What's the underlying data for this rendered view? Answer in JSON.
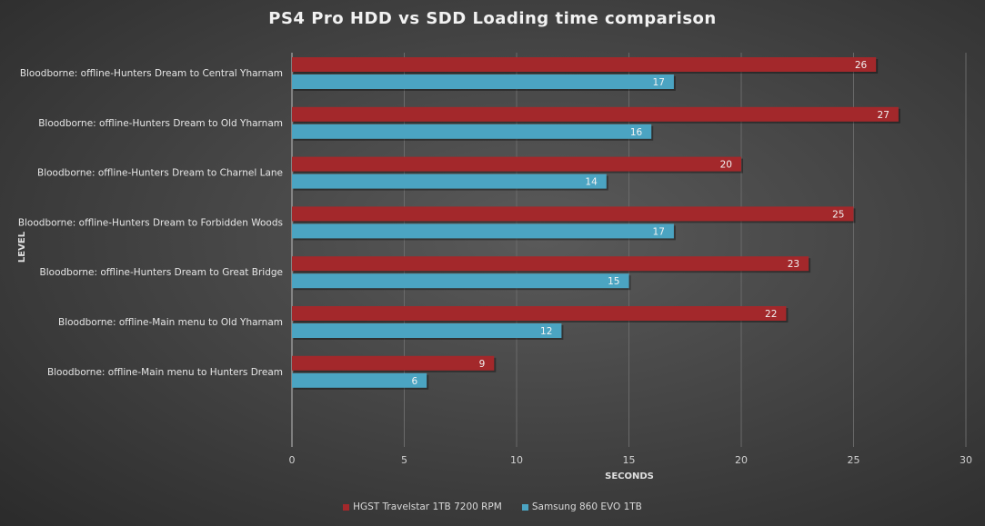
{
  "chart_data": {
    "type": "bar",
    "orientation": "horizontal",
    "title": "PS4 Pro HDD vs SDD Loading time comparison",
    "xlabel": "SECONDS",
    "ylabel": "LEVEL",
    "xlim": [
      0,
      30
    ],
    "xticks": [
      0,
      5,
      10,
      15,
      20,
      25,
      30
    ],
    "grid": true,
    "legend_position": "bottom",
    "categories": [
      "Bloodborne: offline-Hunters Dream to Central Yharnam",
      "Bloodborne: offline-Hunters Dream to Old Yharnam",
      "Bloodborne: offline-Hunters Dream to Charnel Lane",
      "Bloodborne: offline-Hunters Dream to Forbidden Woods",
      "Bloodborne: offline-Hunters Dream to Great Bridge",
      "Bloodborne: offline-Main menu to Old Yharnam",
      "Bloodborne: offline-Main menu to Hunters Dream"
    ],
    "series": [
      {
        "name": "HGST Travelstar 1TB 7200 RPM",
        "color": "#a3282b",
        "values": [
          26,
          27,
          20,
          25,
          23,
          22,
          9
        ]
      },
      {
        "name": "Samsung 860 EVO 1TB",
        "color": "#4ba4c2",
        "values": [
          17,
          16,
          14,
          17,
          15,
          12,
          6
        ]
      }
    ]
  }
}
